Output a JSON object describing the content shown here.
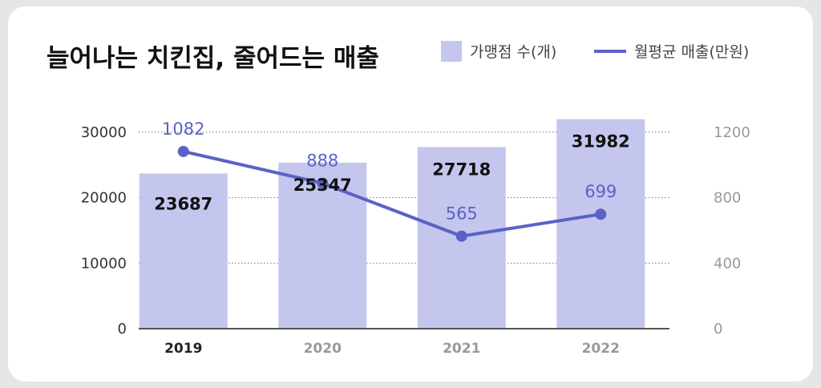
{
  "chart_data": {
    "type": "bar",
    "title": "늘어나는 치킨집, 줄어드는 매출",
    "categories": [
      "2019",
      "2020",
      "2021",
      "2022"
    ],
    "series": [
      {
        "name": "가맹점 수(개)",
        "type": "bar",
        "axis": "left",
        "values": [
          23687,
          25347,
          27718,
          31982
        ],
        "color": "#c4c6ee"
      },
      {
        "name": "월평균 매출(만원)",
        "type": "line",
        "axis": "right",
        "values": [
          1082,
          888,
          565,
          699
        ],
        "color": "#5a62c6"
      }
    ],
    "y_left": {
      "ylim": [
        0,
        35000
      ],
      "ticks": [
        0,
        10000,
        20000,
        30000
      ]
    },
    "y_right": {
      "ylim": [
        0,
        1400
      ],
      "ticks": [
        0,
        400,
        800,
        1200
      ]
    },
    "grid": true,
    "legend": "top-right",
    "highlight_category": "2019"
  }
}
